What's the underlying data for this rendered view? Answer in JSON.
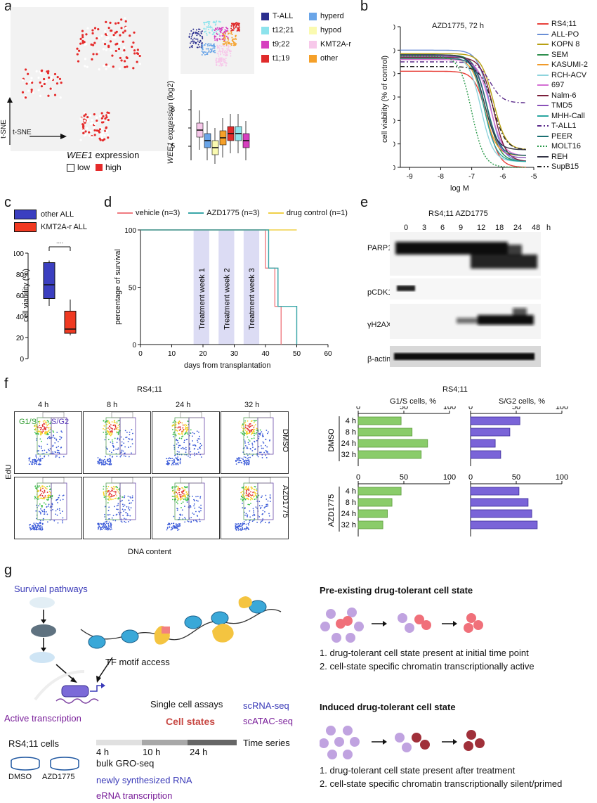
{
  "panels": {
    "a": "a",
    "b": "b",
    "c": "c",
    "d": "d",
    "e": "e",
    "f": "f",
    "g": "g"
  },
  "a": {
    "tsne_axis": "t-SNE",
    "tsne_axis_y": "t-SNE",
    "wee1_title_gene": "WEE1",
    "wee1_title_rest": " expression",
    "low": "low",
    "high": "high",
    "legend": [
      {
        "label": "T-ALL",
        "color": "#2b2f8f"
      },
      {
        "label": "hyperd",
        "color": "#6aa5e8"
      },
      {
        "label": "t12;21",
        "color": "#8de3ec"
      },
      {
        "label": "hypod",
        "color": "#fafab0"
      },
      {
        "label": "t9;22",
        "color": "#d63fbf"
      },
      {
        "label": "KMT2A-r",
        "color": "#f7c8ea"
      },
      {
        "label": "t1;19",
        "color": "#e02b2b"
      },
      {
        "label": "other",
        "color": "#f5a029"
      }
    ],
    "box_ylabel_gene": "WEE1",
    "box_ylabel_rest": " expression (log2)",
    "box_ticks": [
      "8",
      "7",
      "6"
    ]
  },
  "b": {
    "title": "AZD1775, 72 h",
    "ylabel": "cell viability (% of control)",
    "xlabel": "log M",
    "yticks": [
      "120",
      "100",
      "80",
      "60",
      "40",
      "20",
      "0"
    ],
    "xticks": [
      "-9",
      "-8",
      "-7",
      "-6",
      "-5"
    ],
    "legend": [
      {
        "label": "RS4;11",
        "color": "#e8413a",
        "dash": ""
      },
      {
        "label": "ALL-PO",
        "color": "#6b8fd6",
        "dash": ""
      },
      {
        "label": "KOPN 8",
        "color": "#b8a012",
        "dash": ""
      },
      {
        "label": "SEM",
        "color": "#2f8f4e",
        "dash": ""
      },
      {
        "label": "KASUMI-2",
        "color": "#f09a2a",
        "dash": ""
      },
      {
        "label": "RCH-ACV",
        "color": "#8fd4dd",
        "dash": ""
      },
      {
        "label": "697",
        "color": "#d46fd4",
        "dash": ""
      },
      {
        "label": "Nalm-6",
        "color": "#7a1e3a",
        "dash": ""
      },
      {
        "label": "TMD5",
        "color": "#8a50b8",
        "dash": ""
      },
      {
        "label": "MHH-Call",
        "color": "#2aa6a0",
        "dash": ""
      },
      {
        "label": "T-ALL1",
        "color": "#5a2a8a",
        "dash": "6,3,2,3"
      },
      {
        "label": "PEER",
        "color": "#1b6f72",
        "dash": ""
      },
      {
        "label": "MOLT16",
        "color": "#2a9a4a",
        "dash": "2,2"
      },
      {
        "label": "REH",
        "color": "#333344",
        "dash": ""
      },
      {
        "label": "SupB15",
        "color": "#222222",
        "dash": "6,3,2,3"
      }
    ]
  },
  "c": {
    "legend": [
      {
        "label": "other ALL",
        "color": "#3b3fc0"
      },
      {
        "label": "KMT2A-r ALL",
        "color": "#f03a22"
      }
    ],
    "ylabel": "cell viability (%)",
    "yticks": [
      "100",
      "80",
      "60",
      "40",
      "20",
      "0"
    ],
    "sig": "**"
  },
  "d": {
    "legend": [
      {
        "label": "vehicle (n=3)",
        "color": "#f07a80"
      },
      {
        "label": "AZD1775 (n=3)",
        "color": "#3aa6a8"
      },
      {
        "label": "drug control (n=1)",
        "color": "#f0d048"
      }
    ],
    "ylabel": "percentage of survival",
    "xlabel": "days from transplantation",
    "yticks": [
      "100",
      "50",
      "0"
    ],
    "xticks": [
      "0",
      "10",
      "20",
      "30",
      "40",
      "50",
      "60"
    ],
    "weeks": [
      "Treatment week 1",
      "Treatment week 2",
      "Treatment week 3"
    ]
  },
  "e": {
    "title": "RS4;11 AZD1775",
    "hours": [
      "0",
      "3",
      "6",
      "9",
      "12",
      "18",
      "24",
      "48"
    ],
    "h": "h",
    "rows": [
      "PARP1",
      "pCDK1",
      "γH2AX",
      "β-actin"
    ]
  },
  "f": {
    "flow_title": "RS4;11",
    "times": [
      "4 h",
      "8 h",
      "24 h",
      "32 h"
    ],
    "gate1": "G1/S",
    "gate2": "S/G2",
    "rows": [
      "DMSO",
      "AZD1775"
    ],
    "ylabel": "EdU",
    "xlabel": "DNA content",
    "bar_title": "RS4;11",
    "g1_title": "G1/S cells, %",
    "s_title": "S/G2 cells, %",
    "ticks": [
      "0",
      "50",
      "100"
    ],
    "bar_times": [
      "4 h",
      "8 h",
      "24 h",
      "32 h"
    ],
    "dmso_g1": [
      47,
      59,
      76,
      69
    ],
    "dmso_s": [
      54,
      43,
      27,
      33
    ],
    "azd_g1": [
      47,
      37,
      32,
      27
    ],
    "azd_s": [
      53,
      63,
      67,
      73
    ]
  },
  "g": {
    "survival": "Survival pathways",
    "tf": "TF motif access",
    "active": "Active transcription",
    "rs4": "RS4;11 cells",
    "dmso": "DMSO",
    "azd": "AZD1775",
    "single": "Single cell assays",
    "cellstates": "Cell states",
    "scrna": "scRNA-seq",
    "scatac": "scATAC-seq",
    "timeseries": "Time series",
    "t4": "4 h",
    "t10": "10 h",
    "t24": "24 h",
    "gro": "bulk GRO-seq",
    "newly": "newly synthesized RNA",
    "erna": "eRNA transcription",
    "pre_title": "Pre-existing drug-tolerant cell state",
    "pre_1": "1. drug-tolerant cell state present at initial time point",
    "pre_2": "2. cell-state specific chromatin transcriptionally active",
    "ind_title": "Induced drug-tolerant cell state",
    "ind_1": "1. drug-tolerant cell state present after treatment",
    "ind_2": "2. cell-state specific chromatin transcriptionally silent/primed"
  }
}
